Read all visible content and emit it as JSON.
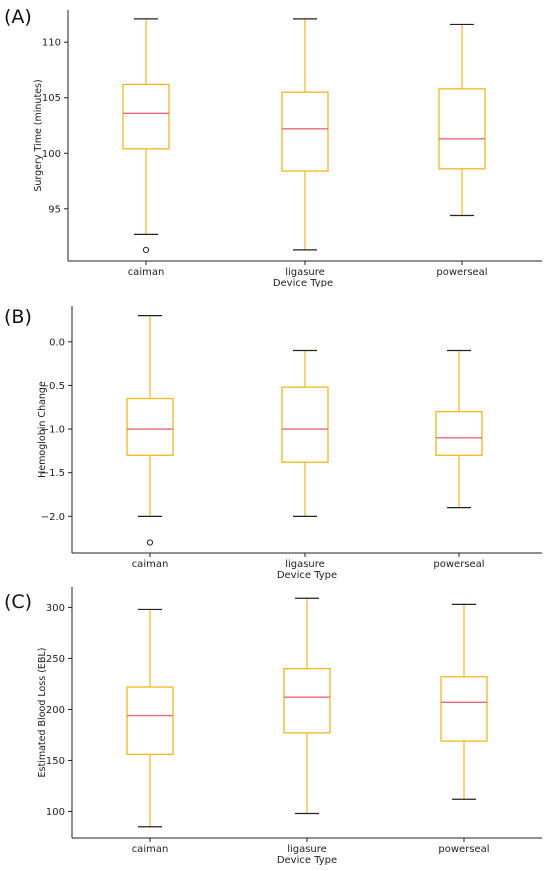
{
  "chart_data": [
    {
      "type": "box",
      "panel_label": "(A)",
      "xlabel": "Device Type",
      "ylabel": "Surgery Time (minutes)",
      "ylim": [
        90.3,
        112.9
      ],
      "yticks": [
        95,
        100,
        105,
        110
      ],
      "ytick_labels": [
        "95",
        "100",
        "105",
        "110"
      ],
      "categories": [
        "caiman",
        "ligasure",
        "powerseal"
      ],
      "boxes": [
        {
          "whisker_low": 92.7,
          "q1": 100.4,
          "median": 103.6,
          "q3": 106.2,
          "whisker_high": 112.1,
          "outliers": [
            91.3
          ]
        },
        {
          "whisker_low": 91.3,
          "q1": 98.4,
          "median": 102.2,
          "q3": 105.5,
          "whisker_high": 112.1,
          "outliers": []
        },
        {
          "whisker_low": 94.4,
          "q1": 98.6,
          "median": 101.3,
          "q3": 105.8,
          "whisker_high": 111.6,
          "outliers": []
        }
      ]
    },
    {
      "type": "box",
      "panel_label": "(B)",
      "xlabel": "Device Type",
      "ylabel": "Hemoglobin Change",
      "ylim": [
        -2.42,
        0.41
      ],
      "yticks": [
        0.0,
        -0.5,
        -1.0,
        -1.5,
        -2.0
      ],
      "ytick_labels": [
        "0.0",
        "−0.5",
        "−1.0",
        "−1.5",
        "−2.0"
      ],
      "categories": [
        "caiman",
        "ligasure",
        "powerseal"
      ],
      "boxes": [
        {
          "whisker_low": -2.0,
          "q1": -1.3,
          "median": -1.0,
          "q3": -0.65,
          "whisker_high": 0.3,
          "outliers": [
            -2.3
          ]
        },
        {
          "whisker_low": -2.0,
          "q1": -1.38,
          "median": -1.0,
          "q3": -0.52,
          "whisker_high": -0.1,
          "outliers": []
        },
        {
          "whisker_low": -1.9,
          "q1": -1.3,
          "median": -1.1,
          "q3": -0.8,
          "whisker_high": -0.1,
          "outliers": []
        }
      ]
    },
    {
      "type": "box",
      "panel_label": "(C)",
      "xlabel": "Device Type",
      "ylabel": "Estimated Blood Loss (EBL)",
      "ylim": [
        74,
        320
      ],
      "yticks": [
        100,
        150,
        200,
        250,
        300
      ],
      "ytick_labels": [
        "100",
        "150",
        "200",
        "250",
        "300"
      ],
      "categories": [
        "caiman",
        "ligasure",
        "powerseal"
      ],
      "boxes": [
        {
          "whisker_low": 85,
          "q1": 156,
          "median": 194,
          "q3": 222,
          "whisker_high": 298,
          "outliers": []
        },
        {
          "whisker_low": 98,
          "q1": 177,
          "median": 212,
          "q3": 240,
          "whisker_high": 309,
          "outliers": []
        },
        {
          "whisker_low": 112,
          "q1": 169,
          "median": 207,
          "q3": 232,
          "whisker_high": 303,
          "outliers": []
        }
      ]
    }
  ],
  "colors": {
    "box": "#f2b81b",
    "median": "#e8697a",
    "cap": "#222222",
    "axis": "#222222",
    "text": "#222222"
  }
}
